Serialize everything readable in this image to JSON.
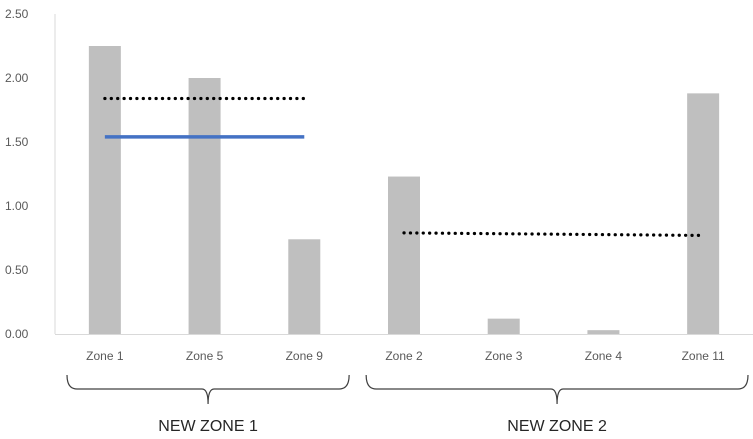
{
  "chart_data": {
    "type": "bar",
    "categories": [
      "Zone 1",
      "Zone 5",
      "Zone 9",
      "Zone 2",
      "Zone 3",
      "Zone 4",
      "Zone 11"
    ],
    "series": [
      {
        "values": [
          2.25,
          2.0,
          0.74,
          1.23,
          0.12,
          0.03,
          1.88
        ],
        "color": "#bfbfbf"
      }
    ],
    "ylim": [
      0,
      2.5
    ],
    "yticks": [
      "0.00",
      "0.50",
      "1.00",
      "1.50",
      "2.00",
      "2.50"
    ],
    "ytick_values": [
      0,
      0.5,
      1.0,
      1.5,
      2.0,
      2.5
    ],
    "grid": false,
    "reference_lines": [
      {
        "style": "dotted",
        "color": "#000000",
        "from_category": 0,
        "to_category": 2,
        "y_start": 1.84,
        "y_end": 1.84
      },
      {
        "style": "solid",
        "color": "#4472c4",
        "from_category": 0,
        "to_category": 2,
        "y_start": 1.54,
        "y_end": 1.54
      },
      {
        "style": "dotted",
        "color": "#000000",
        "from_category": 3,
        "to_category": 6,
        "y_start": 0.79,
        "y_end": 0.77
      }
    ],
    "groups": [
      {
        "label": "NEW ZONE 1",
        "from_category": 0,
        "to_category": 2
      },
      {
        "label": "NEW ZONE 2",
        "from_category": 3,
        "to_category": 6
      }
    ]
  }
}
